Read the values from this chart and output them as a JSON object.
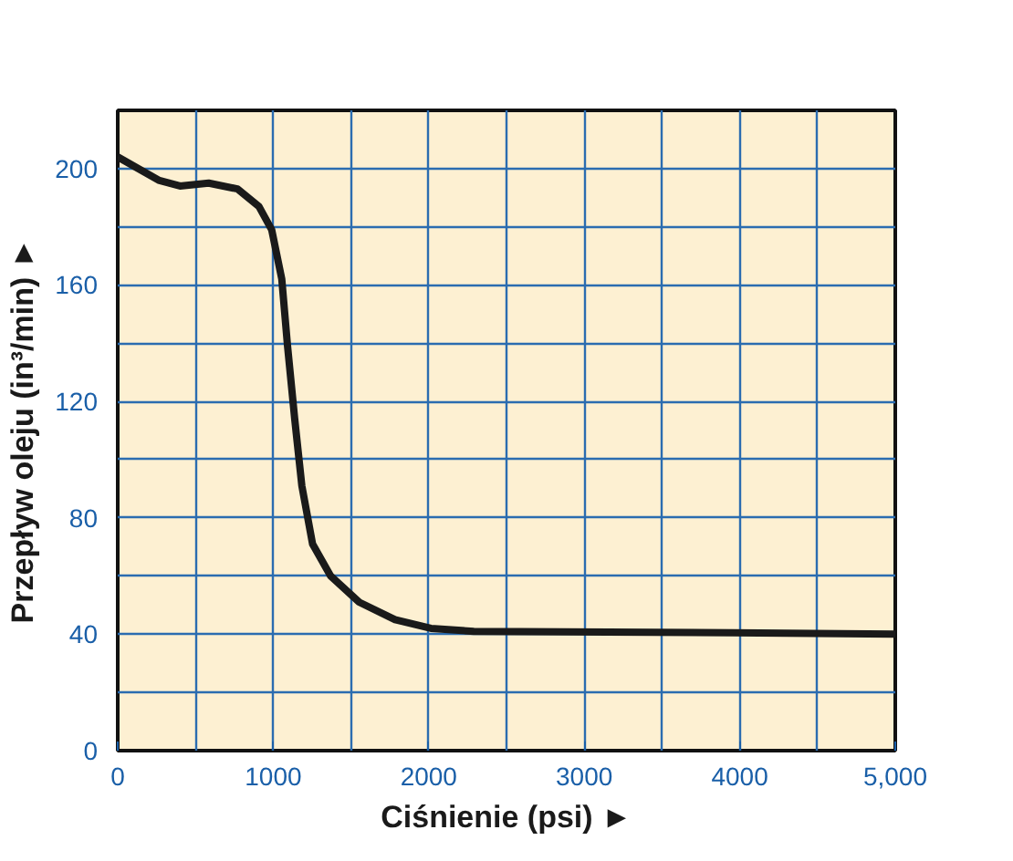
{
  "chart_data": {
    "type": "line",
    "xlabel": "Ciśnienie (psi) ►",
    "ylabel": "Przepływ oleju (in³/min) ►",
    "xlim": [
      0,
      5000
    ],
    "ylim": [
      0,
      220
    ],
    "xticks": [
      0,
      1000,
      2000,
      3000,
      4000,
      {
        "value": 5000,
        "label": "5,000"
      }
    ],
    "yticks": [
      0,
      40,
      80,
      120,
      160,
      200
    ],
    "grid": true,
    "marker": "none",
    "line_style": "solid",
    "series": [
      {
        "color": "#1a1a1a",
        "x": [
          0,
          263,
          400,
          585,
          770,
          908,
          990,
          1055,
          1092,
          1138,
          1184,
          1253,
          1369,
          1553,
          1783,
          2014,
          2290,
          3950,
          5000
        ],
        "values": [
          204,
          196,
          194,
          195,
          193,
          187,
          179,
          162,
          139,
          114,
          91,
          71,
          60,
          51,
          45,
          42,
          41,
          40.5,
          40
        ]
      }
    ]
  }
}
